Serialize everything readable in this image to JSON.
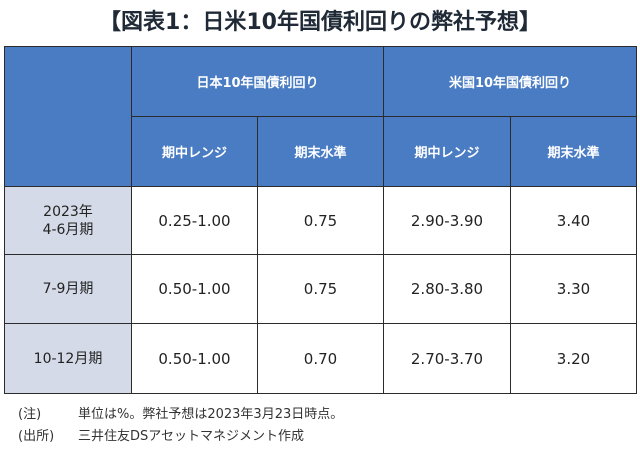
{
  "title": "【図表1：日米10年国債利回りの弊社予想】",
  "table": {
    "groups": [
      {
        "label": "日本10年国債利回り"
      },
      {
        "label": "米国10年国債利回り"
      }
    ],
    "subheaders": [
      "期中レンジ",
      "期末水準",
      "期中レンジ",
      "期末水準"
    ],
    "rows": [
      {
        "period_line1": "2023年",
        "period_line2": "4-6月期",
        "cells": [
          "0.25-1.00",
          "0.75",
          "2.90-3.90",
          "3.40"
        ]
      },
      {
        "period_line1": "7-9月期",
        "period_line2": "",
        "cells": [
          "0.50-1.00",
          "0.75",
          "2.80-3.80",
          "3.30"
        ]
      },
      {
        "period_line1": "10-12月期",
        "period_line2": "",
        "cells": [
          "0.50-1.00",
          "0.70",
          "2.70-3.70",
          "3.20"
        ]
      }
    ]
  },
  "notes": [
    {
      "tag": "(注)",
      "text": "単位は%。弊社予想は2023年3月23日時点。"
    },
    {
      "tag": "(出所)",
      "text": "三井住友DSアセットマネジメント作成"
    }
  ],
  "colors": {
    "header_bg": "#4a7cc3",
    "row_header_bg": "#d4dae8",
    "border": "#2b2b2b"
  }
}
